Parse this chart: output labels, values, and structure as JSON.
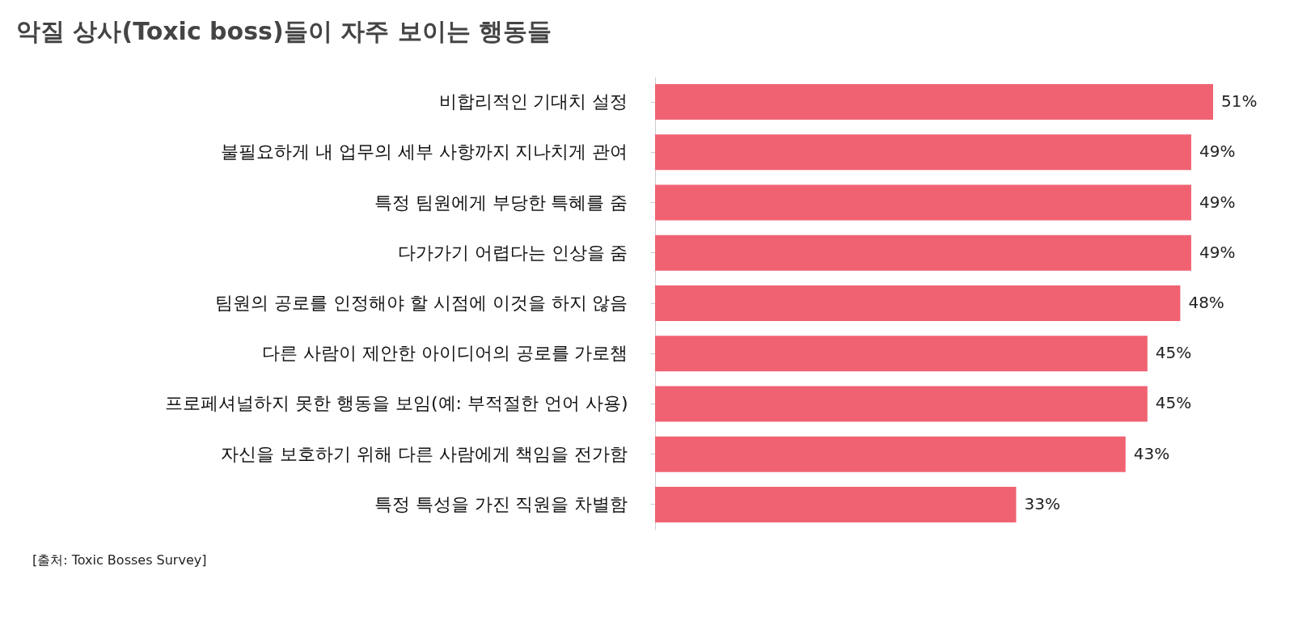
{
  "chart_data": {
    "type": "bar",
    "orientation": "horizontal",
    "title": "악질 상사(Toxic boss)들이 자주 보이는 행동들",
    "categories": [
      "비합리적인 기대치 설정",
      "불필요하게 내 업무의 세부 사항까지 지나치게 관여",
      "특정 팀원에게 부당한 특혜를 줌",
      "다가가기 어렵다는 인상을 줌",
      "팀원의 공로를 인정해야 할 시점에 이것을 하지 않음",
      "다른 사람이 제안한 아이디어의 공로를 가로챔",
      "프로페셔널하지 못한 행동을 보임(예: 부적절한 언어 사용)",
      "자신을 보호하기 위해 다른 사람에게 책임을 전가함",
      "특정 특성을 가진 직원을 차별함"
    ],
    "values": [
      51,
      49,
      49,
      49,
      48,
      45,
      45,
      43,
      33
    ],
    "value_labels": [
      "51%",
      "49%",
      "49%",
      "49%",
      "48%",
      "45%",
      "45%",
      "43%",
      "33%"
    ],
    "color": "#f06272",
    "tick_labels": "y",
    "grid": false,
    "annotations": [
      "[출처: Toxic Bosses Survey]"
    ]
  }
}
